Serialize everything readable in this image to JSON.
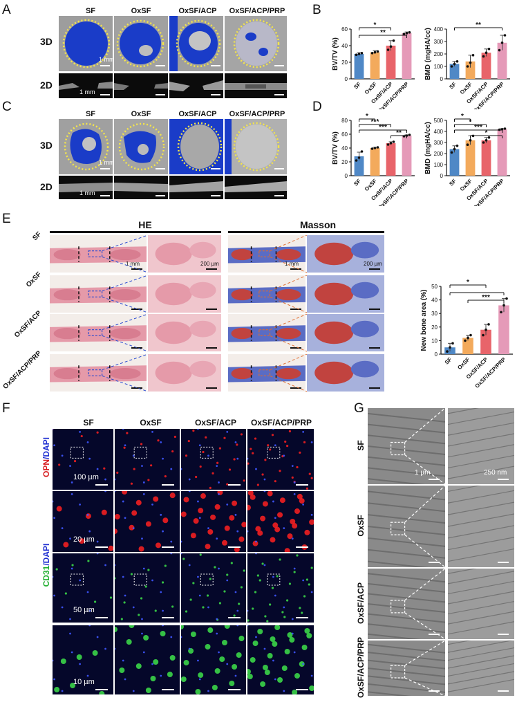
{
  "panels": {
    "A": "A",
    "B": "B",
    "C": "C",
    "D": "D",
    "E": "E",
    "F": "F",
    "G": "G"
  },
  "groups": [
    "SF",
    "OxSF",
    "OxSF/ACP",
    "OxSF/ACP/PRP"
  ],
  "panel_A": {
    "row_3d": "3D",
    "row_2d": "2D",
    "scale_3d": "1 mm",
    "scale_2d": "1 mm"
  },
  "panel_C": {
    "row_3d": "3D",
    "row_2d": "2D",
    "scale_3d": "1 mm",
    "scale_2d": "1 mm"
  },
  "panel_E": {
    "stain_he": "HE",
    "stain_masson": "Masson",
    "scale_low": "1 mm",
    "scale_high": "200 µm"
  },
  "panel_F": {
    "row_opn_marker": "OPN",
    "row_opn_counter": "/DAPI",
    "row_cd31_marker": "CD31",
    "row_cd31_counter": "/DAPI",
    "scale_r1": "100 µm",
    "scale_r2": "20 µm",
    "scale_r3": "50 µm",
    "scale_r4": "10 µm"
  },
  "panel_G": {
    "scale_low": "1 µm",
    "scale_high": "250 nm"
  },
  "colors": {
    "SF": "#4f88c6",
    "OxSF": "#f3aa5c",
    "OxSF/ACP": "#e8646a",
    "OxSF/ACP/PRP": "#e59ab8",
    "dot": "#111111",
    "bone_blue": "#1a3cc8",
    "circle": "#f5e64a"
  },
  "chart_data": [
    {
      "id": "B-left",
      "type": "bar",
      "categories": [
        "SF",
        "OxSF",
        "OxSF/ACP",
        "OxSF/ACP/PRP"
      ],
      "values": [
        30,
        32,
        40,
        55
      ],
      "errors": [
        1.5,
        2,
        6,
        1.5
      ],
      "points": [
        [
          29,
          30,
          31
        ],
        [
          31,
          32,
          33
        ],
        [
          35,
          39,
          46
        ],
        [
          54,
          55,
          56
        ]
      ],
      "ylabel": "BV/TV (%)",
      "ylim": [
        0,
        60
      ],
      "yticks": [
        0,
        20,
        40,
        60
      ],
      "significance": [
        {
          "from": 0,
          "to": 2,
          "label": "*"
        },
        {
          "from": 0,
          "to": 3,
          "label": "**"
        }
      ]
    },
    {
      "id": "B-right",
      "type": "bar",
      "categories": [
        "SF",
        "OxSF",
        "OxSF/ACP",
        "OxSF/ACP/PRP"
      ],
      "values": [
        120,
        140,
        210,
        290
      ],
      "errors": [
        20,
        50,
        30,
        60
      ],
      "points": [
        [
          100,
          120,
          140
        ],
        [
          100,
          130,
          190
        ],
        [
          180,
          210,
          240
        ],
        [
          230,
          290,
          350
        ]
      ],
      "ylabel": "BMD (mgHA/cc)",
      "ylim": [
        0,
        400
      ],
      "yticks": [
        0,
        100,
        200,
        300,
        400
      ],
      "significance": [
        {
          "from": 0,
          "to": 3,
          "label": "**"
        }
      ]
    },
    {
      "id": "D-left",
      "type": "bar",
      "categories": [
        "SF",
        "OxSF",
        "OxSF/ACP",
        "OxSF/ACP/PRP"
      ],
      "values": [
        28,
        40,
        47,
        58
      ],
      "errors": [
        6,
        1,
        2,
        1
      ],
      "points": [
        [
          22,
          26,
          35
        ],
        [
          39,
          40,
          41
        ],
        [
          45,
          47,
          49
        ],
        [
          57,
          58,
          59
        ]
      ],
      "ylabel": "BV/TV (%)",
      "ylim": [
        0,
        80
      ],
      "yticks": [
        0,
        20,
        40,
        60,
        80
      ],
      "significance": [
        {
          "from": 0,
          "to": 1,
          "label": "*"
        },
        {
          "from": 0,
          "to": 2,
          "label": "***"
        },
        {
          "from": 0,
          "to": 3,
          "label": "***"
        },
        {
          "from": 2,
          "to": 3,
          "label": "**"
        }
      ]
    },
    {
      "id": "D-right",
      "type": "bar",
      "categories": [
        "SF",
        "OxSF",
        "OxSF/ACP",
        "OxSF/ACP/PRP"
      ],
      "values": [
        240,
        320,
        320,
        420
      ],
      "errors": [
        30,
        40,
        25,
        5
      ],
      "points": [
        [
          210,
          240,
          270
        ],
        [
          280,
          320,
          360
        ],
        [
          300,
          320,
          345
        ],
        [
          415,
          420,
          425
        ]
      ],
      "ylabel": "BMD (mgHA/cc)",
      "ylim": [
        0,
        500
      ],
      "yticks": [
        0,
        100,
        200,
        300,
        400,
        500
      ],
      "significance": [
        {
          "from": 0,
          "to": 1,
          "label": "*"
        },
        {
          "from": 0,
          "to": 2,
          "label": "*"
        },
        {
          "from": 0,
          "to": 3,
          "label": "***"
        },
        {
          "from": 1,
          "to": 3,
          "label": "*"
        }
      ]
    },
    {
      "id": "E-right",
      "type": "bar",
      "categories": [
        "SF",
        "OxSF",
        "OxSF/ACP",
        "OxSF/ACP/PRP"
      ],
      "values": [
        5,
        12,
        18,
        36
      ],
      "errors": [
        3,
        2,
        4,
        5
      ],
      "points": [
        [
          2,
          5,
          8
        ],
        [
          10,
          12,
          14
        ],
        [
          14,
          18,
          22
        ],
        [
          31,
          36,
          41
        ]
      ],
      "ylabel": "New bone area (%)",
      "ylim": [
        0,
        50
      ],
      "yticks": [
        0,
        10,
        20,
        30,
        40,
        50
      ],
      "significance": [
        {
          "from": 0,
          "to": 2,
          "label": "*"
        },
        {
          "from": 0,
          "to": 3,
          "label": ""
        },
        {
          "from": 1,
          "to": 3,
          "label": "***"
        }
      ]
    }
  ]
}
